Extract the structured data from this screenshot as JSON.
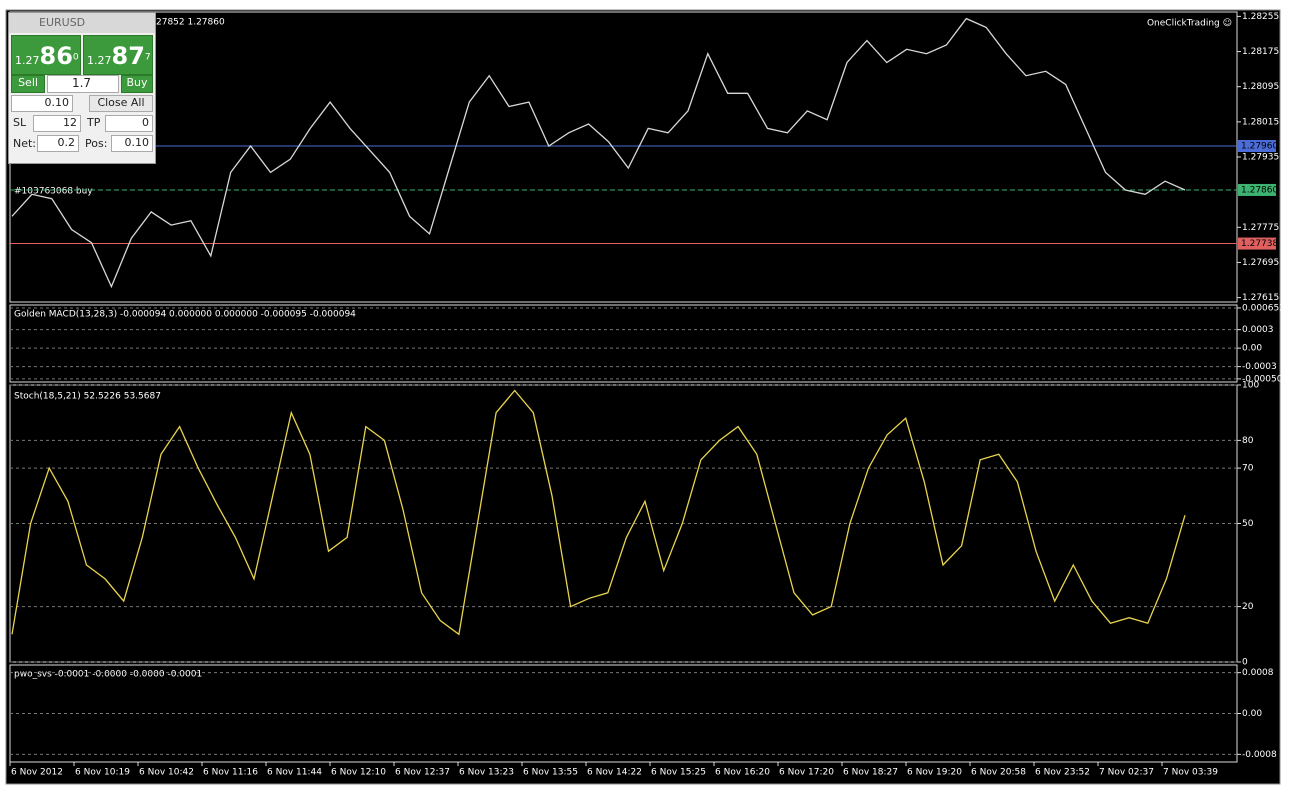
{
  "header": {
    "info": "27852 1.27860",
    "plugin": "OneClickTrading ☺",
    "order": "#103763068 buy"
  },
  "trade_panel": {
    "symbol": "EURUSD",
    "bid_prefix": "1.27",
    "bid_big": "86",
    "bid_small": "0",
    "ask_prefix": "1.27",
    "ask_big": "87",
    "ask_small": "7",
    "sell": "Sell",
    "spread": "1.7",
    "buy": "Buy",
    "lots": "0.10",
    "close_all": "Close All",
    "sl_label": "SL",
    "sl": "12",
    "tp_label": "TP",
    "tp": "0",
    "net_label": "Net:",
    "net": "0.2",
    "pos_label": "Pos:",
    "pos": "0.10"
  },
  "price": {
    "ylim": [
      1.27605,
      1.28265
    ],
    "yticks": [
      1.28255,
      1.28175,
      1.28095,
      1.28015,
      1.27935,
      1.27775,
      1.27695,
      1.27615
    ],
    "levels": [
      {
        "value": 1.2796,
        "label": "1.27960",
        "color": "#4a6bd8"
      },
      {
        "value": 1.2786,
        "label": "1.27860",
        "color": "#3cb371"
      },
      {
        "value": 1.27738,
        "label": "1.27738",
        "color": "#e06060"
      }
    ],
    "color": "#d8d8d8",
    "closes": [
      1.278,
      1.2785,
      1.2784,
      1.2777,
      1.2774,
      1.2764,
      1.2775,
      1.2781,
      1.2778,
      1.2779,
      1.2771,
      1.279,
      1.2796,
      1.279,
      1.2793,
      1.28,
      1.2806,
      1.28,
      1.2795,
      1.279,
      1.278,
      1.2776,
      1.2791,
      1.2806,
      1.2812,
      1.2805,
      1.2806,
      1.2796,
      1.2799,
      1.2801,
      1.2797,
      1.2791,
      1.28,
      1.2799,
      1.2804,
      1.2817,
      1.2808,
      1.2808,
      1.28,
      1.2799,
      1.2804,
      1.2802,
      1.2815,
      1.282,
      1.2815,
      1.2818,
      1.2817,
      1.2819,
      1.2825,
      1.2823,
      1.2817,
      1.2812,
      1.2813,
      1.281,
      1.28,
      1.279,
      1.2786,
      1.2785,
      1.2788,
      1.2786
    ]
  },
  "macd": {
    "title": "Golden MACD(13,28,3) -0.000094 0.000000 0.000000 -0.000095 -0.000094",
    "ylim": [
      -0.00055,
      0.0007
    ],
    "yticks": [
      0.000652,
      0.0003,
      {
        "value": 0,
        "label": "0.00"
      },
      -0.0003,
      {
        "value": -0.0005,
        "label": "-0.00050"
      }
    ]
  },
  "stoch": {
    "title": "Stoch(18,5,21) 52.5226 53.5687",
    "ylim": [
      0,
      100
    ],
    "yticks": [
      100,
      80,
      70,
      50,
      20,
      0
    ],
    "color": "#e8d44d",
    "values": [
      10,
      50,
      70,
      58,
      35,
      30,
      22,
      45,
      75,
      85,
      70,
      57,
      45,
      30,
      60,
      90,
      75,
      40,
      45,
      85,
      80,
      55,
      25,
      15,
      10,
      50,
      90,
      98,
      90,
      60,
      20,
      23,
      25,
      45,
      58,
      33,
      50,
      73,
      80,
      85,
      75,
      50,
      25,
      17,
      20,
      50,
      70,
      82,
      88,
      65,
      35,
      42,
      73,
      75,
      65,
      40,
      22,
      35,
      22,
      14,
      16,
      14,
      30,
      53
    ]
  },
  "pwo": {
    "title": "pwo_svs -0.0001 -0.0000 -0.0000 -0.0001",
    "ylim": [
      -0.00095,
      0.00095
    ],
    "yticks": [
      0.0008,
      {
        "value": 0,
        "label": "0.00"
      },
      -0.0008
    ]
  },
  "time_axis": [
    "6 Nov 2012",
    "6 Nov 10:19",
    "6 Nov 10:42",
    "6 Nov 11:16",
    "6 Nov 11:44",
    "6 Nov 12:10",
    "6 Nov 12:37",
    "6 Nov 13:23",
    "6 Nov 13:55",
    "6 Nov 14:22",
    "6 Nov 15:25",
    "6 Nov 16:20",
    "6 Nov 17:20",
    "6 Nov 18:27",
    "6 Nov 19:20",
    "6 Nov 20:58",
    "6 Nov 23:52",
    "7 Nov 02:37",
    "7 Nov 03:39"
  ]
}
